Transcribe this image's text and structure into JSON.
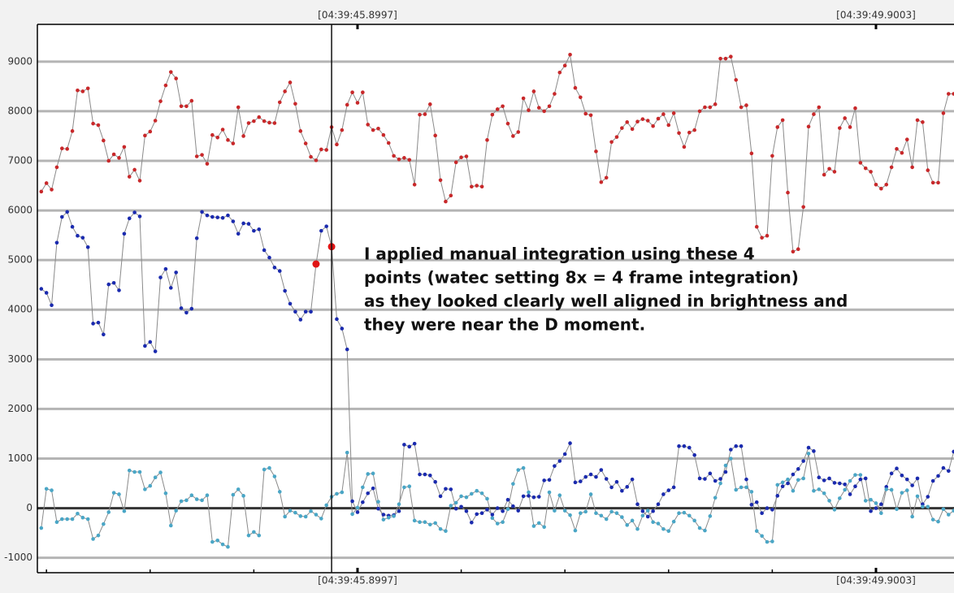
{
  "chart_data": {
    "type": "line",
    "annotation": [
      "I applied manual integration using these 4",
      "points (watec setting 8x = 4 frame integration)",
      "as they looked clearly well aligned in brightness and",
      "they were near the D moment."
    ],
    "xlim": [
      -0.75,
      176.05
    ],
    "xticks": [
      {
        "value": 61,
        "label": "[04:39:45.8997]"
      },
      {
        "value": 161,
        "label": "[04:39:49.9003]"
      }
    ],
    "xminor_ticks": [
      1,
      21,
      41,
      81,
      101,
      121,
      141
    ],
    "ylim": [
      -1300,
      9750
    ],
    "yticks": [
      -1000,
      0,
      1000,
      2000,
      3000,
      4000,
      5000,
      6000,
      7000,
      8000,
      9000
    ],
    "grid": true,
    "zero_line": true,
    "cursor_x": 56,
    "line_color": "#8a8a8a",
    "highlight": {
      "series": 1,
      "indices": [
        53,
        56
      ],
      "color": "#e01414"
    },
    "series": [
      {
        "color": "#c8282a",
        "values": [
          6380,
          6550,
          6420,
          6870,
          7250,
          7240,
          7600,
          8420,
          8400,
          8460,
          7750,
          7720,
          7410,
          7000,
          7130,
          7060,
          7280,
          6680,
          6820,
          6600,
          7510,
          7590,
          7810,
          8200,
          8520,
          8790,
          8660,
          8100,
          8100,
          8210,
          7090,
          7120,
          6940,
          7520,
          7470,
          7630,
          7420,
          7350,
          8080,
          7500,
          7760,
          7800,
          7880,
          7800,
          7770,
          7760,
          8180,
          8400,
          8580,
          8150,
          7600,
          7350,
          7080,
          7010,
          7230,
          7220,
          7680,
          7330,
          7620,
          8130,
          8380,
          8170,
          8380,
          7730,
          7620,
          7650,
          7520,
          7360,
          7100,
          7030,
          7060,
          7020,
          6520,
          7930,
          7940,
          8140,
          7510,
          6610,
          6180,
          6300,
          6970,
          7070,
          7090,
          6480,
          6500,
          6480,
          7420,
          7930,
          8040,
          8100,
          7750,
          7500,
          7580,
          8260,
          8020,
          8400,
          8070,
          8000,
          8100,
          8350,
          8780,
          8920,
          9140,
          8470,
          8280,
          7950,
          7920,
          7190,
          6570,
          6660,
          7380,
          7480,
          7660,
          7780,
          7640,
          7790,
          7840,
          7810,
          7700,
          7850,
          7940,
          7720,
          7960,
          7560,
          7280,
          7570,
          7620,
          8000,
          8080,
          8080,
          8140,
          9060,
          9060,
          9100,
          8630,
          8080,
          8120,
          7150,
          5670,
          5450,
          5490,
          7100,
          7680,
          7820,
          6360,
          5170,
          5220,
          6070,
          7690,
          7940,
          8080,
          6720,
          6840,
          6780,
          7660,
          7860,
          7680,
          8060,
          6960,
          6850,
          6780,
          6520,
          6440,
          6520,
          6870,
          7240,
          7160,
          7430,
          6870,
          7820,
          7780,
          6810,
          6560,
          6560,
          7960,
          8350,
          8350
        ]
      },
      {
        "color": "#1a2aae",
        "values": [
          4420,
          4340,
          4090,
          5350,
          5870,
          5970,
          5670,
          5490,
          5450,
          5260,
          3720,
          3740,
          3500,
          4510,
          4540,
          4390,
          5530,
          5840,
          5960,
          5880,
          3270,
          3350,
          3160,
          4650,
          4820,
          4440,
          4750,
          4030,
          3940,
          4020,
          5440,
          5970,
          5900,
          5870,
          5860,
          5850,
          5900,
          5780,
          5530,
          5740,
          5730,
          5590,
          5620,
          5200,
          5050,
          4850,
          4780,
          4380,
          4120,
          3960,
          3800,
          3960,
          3960,
          4920,
          5590,
          5680,
          5270,
          3810,
          3620,
          3200,
          140,
          -80,
          120,
          300,
          400,
          -10,
          -130,
          -150,
          -140,
          -60,
          1280,
          1240,
          1300,
          680,
          680,
          660,
          530,
          240,
          390,
          380,
          -10,
          30,
          -60,
          -290,
          -120,
          -100,
          -30,
          -130,
          0,
          -60,
          170,
          40,
          -50,
          240,
          250,
          220,
          230,
          560,
          570,
          850,
          950,
          1090,
          1310,
          520,
          540,
          630,
          680,
          630,
          770,
          590,
          420,
          530,
          350,
          430,
          580,
          80,
          -60,
          -170,
          -60,
          80,
          280,
          360,
          420,
          1250,
          1250,
          1220,
          1070,
          600,
          590,
          700,
          550,
          590,
          730,
          1180,
          1250,
          1250,
          580,
          70,
          120,
          -100,
          0,
          -30,
          250,
          440,
          500,
          680,
          790,
          950,
          1220,
          1150,
          620,
          560,
          600,
          510,
          500,
          480,
          280,
          440,
          580,
          600,
          -60,
          0,
          80,
          430,
          700,
          800,
          660,
          580,
          460,
          600,
          80,
          230,
          550,
          650,
          810,
          750,
          1140
        ]
      },
      {
        "color": "#4aa6c6",
        "values": [
          -400,
          390,
          360,
          -280,
          -220,
          -220,
          -220,
          -110,
          -190,
          -220,
          -620,
          -550,
          -320,
          -80,
          310,
          280,
          -60,
          760,
          730,
          730,
          380,
          450,
          620,
          720,
          300,
          -350,
          -50,
          140,
          160,
          260,
          180,
          160,
          260,
          -680,
          -650,
          -730,
          -780,
          270,
          380,
          250,
          -550,
          -480,
          -550,
          780,
          810,
          640,
          330,
          -170,
          -50,
          -90,
          -160,
          -170,
          -60,
          -130,
          -210,
          60,
          230,
          290,
          320,
          1120,
          -120,
          10,
          420,
          690,
          700,
          130,
          -230,
          -190,
          -160,
          80,
          420,
          440,
          -250,
          -280,
          -280,
          -330,
          -300,
          -420,
          -460,
          50,
          110,
          240,
          220,
          290,
          350,
          300,
          190,
          -200,
          -310,
          -280,
          -20,
          490,
          770,
          810,
          320,
          -360,
          -300,
          -380,
          320,
          -50,
          260,
          -50,
          -140,
          -450,
          -100,
          -70,
          280,
          -100,
          -150,
          -220,
          -70,
          -100,
          -180,
          -340,
          -250,
          -420,
          -150,
          -50,
          -280,
          -310,
          -420,
          -460,
          -270,
          -100,
          -90,
          -150,
          -250,
          -400,
          -450,
          -160,
          210,
          500,
          860,
          1000,
          370,
          420,
          420,
          330,
          -460,
          -560,
          -680,
          -670,
          470,
          520,
          580,
          350,
          570,
          600,
          1100,
          350,
          380,
          300,
          150,
          -30,
          200,
          370,
          550,
          670,
          670,
          150,
          170,
          100,
          -100,
          380,
          370,
          -20,
          310,
          360,
          -170,
          240,
          30,
          30,
          -230,
          -270,
          -20,
          -130,
          -50
        ]
      }
    ]
  }
}
